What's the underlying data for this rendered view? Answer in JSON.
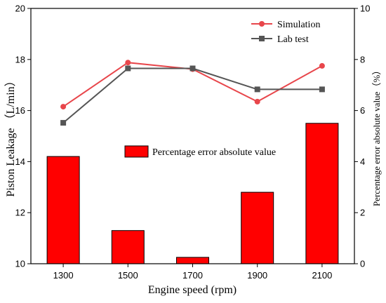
{
  "chart_data": {
    "type": "bar",
    "title": "",
    "xlabel": "Engine speed (rpm)",
    "ylabel": "Piston Leakage （L/min）",
    "y2label": "Percentage error absolute value（%）",
    "categories": [
      "1300",
      "1500",
      "1700",
      "1900",
      "2100"
    ],
    "ylim": [
      10,
      20
    ],
    "y2lim": [
      0,
      10
    ],
    "yticks": [
      "10",
      "12",
      "14",
      "16",
      "18",
      "20"
    ],
    "y2ticks": [
      "0",
      "2",
      "4",
      "6",
      "8",
      "10"
    ],
    "series": [
      {
        "name": "Simulation",
        "type": "line",
        "axis": "left",
        "color": "#e8464b",
        "marker": "circle",
        "values": [
          16.15,
          17.88,
          17.62,
          16.35,
          17.75
        ]
      },
      {
        "name": "Lab test",
        "type": "line",
        "axis": "left",
        "color": "#555555",
        "marker": "square",
        "values": [
          15.52,
          17.65,
          17.65,
          16.83,
          16.83
        ]
      },
      {
        "name": "Percentage error absolute value",
        "type": "bar",
        "axis": "right",
        "color": "#ff0000",
        "values": [
          4.2,
          1.3,
          0.25,
          2.8,
          5.5
        ]
      }
    ],
    "legend_placement": "top-right",
    "grid": false
  }
}
